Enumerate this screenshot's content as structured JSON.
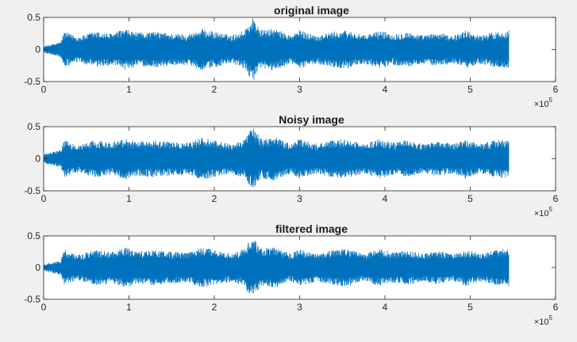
{
  "chart_data": [
    {
      "type": "line",
      "title": "original image",
      "xlabel": "",
      "ylabel": "",
      "xlim": [
        0,
        6
      ],
      "ylim": [
        -0.5,
        0.5
      ],
      "x_ticks": [
        "0",
        "1",
        "2",
        "3",
        "4",
        "5",
        "6"
      ],
      "y_ticks": [
        "0.5",
        "0",
        "-0.5"
      ],
      "x_exponent_base": "×10",
      "x_exponent_power": "5",
      "signal_length_x1e5": 5.45,
      "grid": false,
      "series_color": "#0072BD",
      "envelope": [
        [
          0.0,
          0.05
        ],
        [
          0.2,
          0.12
        ],
        [
          0.24,
          0.28
        ],
        [
          0.4,
          0.2
        ],
        [
          0.6,
          0.28
        ],
        [
          0.8,
          0.25
        ],
        [
          0.95,
          0.32
        ],
        [
          1.1,
          0.26
        ],
        [
          1.3,
          0.28
        ],
        [
          1.5,
          0.25
        ],
        [
          1.7,
          0.24
        ],
        [
          1.85,
          0.32
        ],
        [
          2.0,
          0.28
        ],
        [
          2.2,
          0.22
        ],
        [
          2.35,
          0.3
        ],
        [
          2.45,
          0.5
        ],
        [
          2.55,
          0.3
        ],
        [
          2.7,
          0.33
        ],
        [
          2.9,
          0.22
        ],
        [
          3.0,
          0.3
        ],
        [
          3.2,
          0.22
        ],
        [
          3.4,
          0.28
        ],
        [
          3.55,
          0.3
        ],
        [
          3.75,
          0.22
        ],
        [
          3.95,
          0.3
        ],
        [
          4.1,
          0.24
        ],
        [
          4.25,
          0.28
        ],
        [
          4.45,
          0.22
        ],
        [
          4.6,
          0.26
        ],
        [
          4.8,
          0.22
        ],
        [
          4.95,
          0.3
        ],
        [
          5.1,
          0.22
        ],
        [
          5.3,
          0.28
        ],
        [
          5.45,
          0.3
        ]
      ]
    },
    {
      "type": "line",
      "title": "Noisy image",
      "xlabel": "",
      "ylabel": "",
      "xlim": [
        0,
        6
      ],
      "ylim": [
        -0.5,
        0.5
      ],
      "x_ticks": [
        "0",
        "1",
        "2",
        "3",
        "4",
        "5",
        "6"
      ],
      "y_ticks": [
        "0.5",
        "0",
        "-0.5"
      ],
      "x_exponent_base": "×10",
      "x_exponent_power": "5",
      "signal_length_x1e5": 5.45,
      "grid": false,
      "series_color": "#0072BD",
      "envelope": [
        [
          0.0,
          0.07
        ],
        [
          0.2,
          0.14
        ],
        [
          0.24,
          0.29
        ],
        [
          0.4,
          0.21
        ],
        [
          0.6,
          0.29
        ],
        [
          0.8,
          0.26
        ],
        [
          0.95,
          0.33
        ],
        [
          1.1,
          0.27
        ],
        [
          1.3,
          0.29
        ],
        [
          1.5,
          0.26
        ],
        [
          1.7,
          0.25
        ],
        [
          1.85,
          0.33
        ],
        [
          2.0,
          0.29
        ],
        [
          2.2,
          0.23
        ],
        [
          2.35,
          0.31
        ],
        [
          2.45,
          0.5
        ],
        [
          2.55,
          0.31
        ],
        [
          2.7,
          0.34
        ],
        [
          2.9,
          0.23
        ],
        [
          3.0,
          0.31
        ],
        [
          3.2,
          0.23
        ],
        [
          3.4,
          0.29
        ],
        [
          3.55,
          0.31
        ],
        [
          3.75,
          0.23
        ],
        [
          3.95,
          0.31
        ],
        [
          4.1,
          0.25
        ],
        [
          4.25,
          0.29
        ],
        [
          4.45,
          0.23
        ],
        [
          4.6,
          0.27
        ],
        [
          4.8,
          0.23
        ],
        [
          4.95,
          0.31
        ],
        [
          5.1,
          0.23
        ],
        [
          5.3,
          0.29
        ],
        [
          5.45,
          0.31
        ]
      ]
    },
    {
      "type": "line",
      "title": "filtered image",
      "xlabel": "",
      "ylabel": "",
      "xlim": [
        0,
        6
      ],
      "ylim": [
        -0.5,
        0.5
      ],
      "x_ticks": [
        "0",
        "1",
        "2",
        "3",
        "4",
        "5",
        "6"
      ],
      "y_ticks": [
        "0.5",
        "0",
        "-0.5"
      ],
      "x_exponent_base": "×10",
      "x_exponent_power": "5",
      "signal_length_x1e5": 5.45,
      "grid": false,
      "series_color": "#0072BD",
      "envelope": [
        [
          0.0,
          0.05
        ],
        [
          0.2,
          0.12
        ],
        [
          0.24,
          0.28
        ],
        [
          0.4,
          0.2
        ],
        [
          0.6,
          0.28
        ],
        [
          0.8,
          0.25
        ],
        [
          0.95,
          0.32
        ],
        [
          1.1,
          0.26
        ],
        [
          1.3,
          0.28
        ],
        [
          1.5,
          0.25
        ],
        [
          1.7,
          0.24
        ],
        [
          1.85,
          0.32
        ],
        [
          2.0,
          0.28
        ],
        [
          2.2,
          0.22
        ],
        [
          2.35,
          0.3
        ],
        [
          2.45,
          0.5
        ],
        [
          2.55,
          0.3
        ],
        [
          2.7,
          0.33
        ],
        [
          2.9,
          0.22
        ],
        [
          3.0,
          0.3
        ],
        [
          3.2,
          0.22
        ],
        [
          3.4,
          0.28
        ],
        [
          3.55,
          0.3
        ],
        [
          3.75,
          0.22
        ],
        [
          3.95,
          0.3
        ],
        [
          4.1,
          0.24
        ],
        [
          4.25,
          0.28
        ],
        [
          4.45,
          0.22
        ],
        [
          4.6,
          0.26
        ],
        [
          4.8,
          0.22
        ],
        [
          4.95,
          0.3
        ],
        [
          5.1,
          0.22
        ],
        [
          5.3,
          0.28
        ],
        [
          5.45,
          0.3
        ]
      ]
    }
  ]
}
